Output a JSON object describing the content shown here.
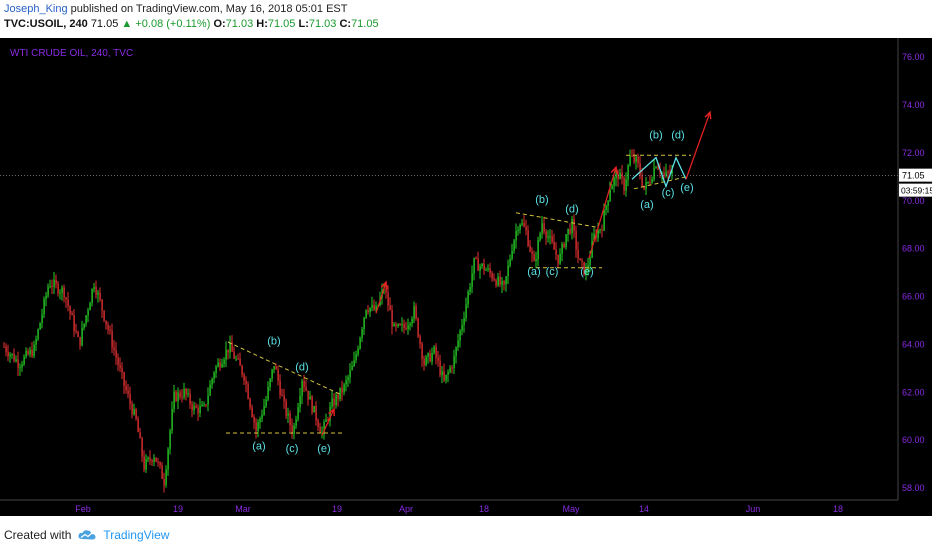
{
  "header": {
    "author": "Joseph_King",
    "published_text": "published on TradingView.com, May 16, 2018 05:01 EST",
    "symbol": "TVC:USOIL, 240",
    "last": "71.05",
    "change": "▲ +0.08 (+0.11%)",
    "o_label": "O:",
    "o_val": "71.03",
    "h_label": "H:",
    "h_val": "71.05",
    "l_label": "L:",
    "l_val": "71.03",
    "c_label": "C:",
    "c_val": "71.05"
  },
  "footer": {
    "created_with": "Created with",
    "brand": "TradingView",
    "logo_icon": "tradingview-cloud-icon"
  },
  "colors": {
    "background": "#000000",
    "up": "#26d026",
    "down": "#e43131",
    "axis_text": "#8a2be2",
    "wave_label": "#5ce1e6",
    "trendline": "#d4c23a",
    "arrow": "#e02020"
  },
  "chart_data": {
    "type": "candlestick",
    "title": "WTI CRUDE OIL, 240, TVC",
    "ylim": [
      57.5,
      76.8
    ],
    "y_ticks": [
      "76.00",
      "74.00",
      "72.00",
      "70.00",
      "68.00",
      "66.00",
      "64.00",
      "62.00",
      "60.00",
      "58.00"
    ],
    "x_ticks": [
      "Feb",
      "19",
      "Mar",
      "19",
      "Apr",
      "18",
      "May",
      "14",
      "Jun",
      "18"
    ],
    "last_price_label": "71.05",
    "countdown_label": "03:59:15",
    "price_path": [
      [
        0,
        63.9
      ],
      [
        15,
        63.2
      ],
      [
        30,
        63.8
      ],
      [
        45,
        66.6
      ],
      [
        60,
        66.2
      ],
      [
        75,
        64.0
      ],
      [
        90,
        66.6
      ],
      [
        105,
        64.5
      ],
      [
        120,
        62.3
      ],
      [
        132,
        60.8
      ],
      [
        140,
        58.9
      ],
      [
        150,
        59.4
      ],
      [
        160,
        58.3
      ],
      [
        170,
        61.8
      ],
      [
        180,
        62.0
      ],
      [
        190,
        61.3
      ],
      [
        200,
        61.3
      ],
      [
        210,
        62.9
      ],
      [
        225,
        63.9
      ],
      [
        240,
        62.7
      ],
      [
        252,
        60.4
      ],
      [
        262,
        61.7
      ],
      [
        270,
        63.2
      ],
      [
        280,
        61.4
      ],
      [
        289,
        60.3
      ],
      [
        298,
        62.6
      ],
      [
        308,
        61.4
      ],
      [
        318,
        60.3
      ],
      [
        328,
        61.5
      ],
      [
        340,
        62.2
      ],
      [
        350,
        63.2
      ],
      [
        362,
        65.6
      ],
      [
        372,
        65.4
      ],
      [
        380,
        66.4
      ],
      [
        390,
        64.6
      ],
      [
        400,
        64.7
      ],
      [
        410,
        65.4
      ],
      [
        420,
        63.2
      ],
      [
        430,
        63.7
      ],
      [
        440,
        62.4
      ],
      [
        450,
        63.4
      ],
      [
        460,
        65.3
      ],
      [
        470,
        67.4
      ],
      [
        480,
        67.2
      ],
      [
        490,
        66.8
      ],
      [
        500,
        66.3
      ],
      [
        508,
        68.1
      ],
      [
        515,
        69.2
      ],
      [
        522,
        68.7
      ],
      [
        530,
        67.3
      ],
      [
        538,
        69.1
      ],
      [
        546,
        68.3
      ],
      [
        555,
        67.5
      ],
      [
        562,
        68.6
      ],
      [
        568,
        69.0
      ],
      [
        575,
        67.4
      ],
      [
        582,
        67.0
      ],
      [
        590,
        68.5
      ],
      [
        598,
        69.0
      ],
      [
        606,
        70.6
      ],
      [
        614,
        71.1
      ],
      [
        620,
        70.6
      ],
      [
        626,
        71.8
      ],
      [
        633,
        71.6
      ],
      [
        640,
        70.5
      ],
      [
        645,
        70.8
      ],
      [
        652,
        71.6
      ],
      [
        660,
        71.0
      ],
      [
        668,
        71.2
      ]
    ],
    "wave_labels": [
      {
        "text": "(a)",
        "x": 255,
        "y": 59.6
      },
      {
        "text": "(b)",
        "x": 270,
        "y": 64.0
      },
      {
        "text": "(c)",
        "x": 288,
        "y": 59.5
      },
      {
        "text": "(d)",
        "x": 298,
        "y": 62.9
      },
      {
        "text": "(e)",
        "x": 320,
        "y": 59.5
      },
      {
        "text": "(a)",
        "x": 530,
        "y": 66.9
      },
      {
        "text": "(b)",
        "x": 538,
        "y": 69.9
      },
      {
        "text": "(c)",
        "x": 548,
        "y": 66.9
      },
      {
        "text": "(d)",
        "x": 568,
        "y": 69.5
      },
      {
        "text": "(e)",
        "x": 583,
        "y": 66.9
      },
      {
        "text": "(a)",
        "x": 643,
        "y": 69.7
      },
      {
        "text": "(b)",
        "x": 652,
        "y": 72.6
      },
      {
        "text": "(c)",
        "x": 664,
        "y": 70.2
      },
      {
        "text": "(d)",
        "x": 674,
        "y": 72.6
      },
      {
        "text": "(e)",
        "x": 683,
        "y": 70.4
      }
    ],
    "triangles": [
      {
        "upper": [
          [
            224,
            64.1
          ],
          [
            337,
            61.9
          ]
        ],
        "lower": [
          [
            222,
            60.3
          ],
          [
            340,
            60.3
          ]
        ]
      },
      {
        "upper": [
          [
            512,
            69.5
          ],
          [
            592,
            68.9
          ]
        ],
        "lower": [
          [
            525,
            67.2
          ],
          [
            598,
            67.2
          ]
        ]
      },
      {
        "upper": [
          [
            622,
            71.9
          ],
          [
            687,
            71.9
          ]
        ],
        "lower": [
          [
            630,
            70.5
          ],
          [
            682,
            71.0
          ]
        ]
      }
    ],
    "projections": [
      {
        "color": "cyan",
        "points": [
          [
            628,
            70.9
          ],
          [
            652,
            71.8
          ],
          [
            662,
            70.6
          ],
          [
            672,
            71.8
          ],
          [
            682,
            70.9
          ]
        ]
      },
      {
        "color": "red",
        "points": [
          [
            585,
            67.6
          ],
          [
            612,
            71.4
          ]
        ]
      },
      {
        "color": "red",
        "points": [
          [
            682,
            70.9
          ],
          [
            706,
            73.7
          ]
        ]
      },
      {
        "color": "red",
        "points": [
          [
            318,
            60.2
          ],
          [
            330,
            61.3
          ]
        ]
      },
      {
        "color": "red",
        "points": [
          [
            372,
            65.3
          ],
          [
            382,
            66.6
          ]
        ]
      }
    ]
  }
}
